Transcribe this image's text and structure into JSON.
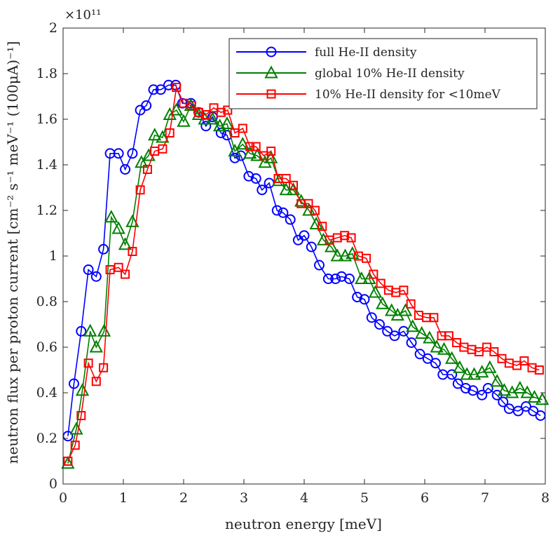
{
  "chart_data": {
    "type": "line",
    "title": "",
    "xlabel": "neutron energy [meV]",
    "ylabel": "neutron flux per proton current  [cm⁻² s⁻¹ meV⁻¹ (100μA)⁻¹]",
    "y_exponent_label": "×10¹¹",
    "xlim": [
      0,
      8
    ],
    "ylim": [
      0,
      2
    ],
    "xticks": [
      0,
      1,
      2,
      3,
      4,
      5,
      6,
      7,
      8
    ],
    "xtick_labels": [
      "0",
      "1",
      "2",
      "3",
      "4",
      "5",
      "6",
      "7",
      "8"
    ],
    "yticks": [
      0,
      0.2,
      0.4,
      0.6,
      0.8,
      1,
      1.2,
      1.4,
      1.6,
      1.8,
      2
    ],
    "ytick_labels": [
      "0",
      "0.2",
      "0.4",
      "0.6",
      "0.8",
      "1",
      "1.2",
      "1.4",
      "1.6",
      "1.8",
      "2"
    ],
    "grid": false,
    "legend_position": "top-right",
    "series": [
      {
        "name": "full He-II density",
        "color": "#0000ff",
        "marker": "circle",
        "x": [
          0.08,
          0.18,
          0.3,
          0.42,
          0.55,
          0.67,
          0.78,
          0.92,
          1.03,
          1.15,
          1.28,
          1.38,
          1.5,
          1.62,
          1.75,
          1.87,
          1.98,
          2.12,
          2.25,
          2.37,
          2.48,
          2.62,
          2.72,
          2.85,
          2.95,
          3.08,
          3.2,
          3.3,
          3.42,
          3.55,
          3.65,
          3.77,
          3.9,
          4.0,
          4.12,
          4.25,
          4.4,
          4.52,
          4.62,
          4.75,
          4.88,
          5.0,
          5.12,
          5.25,
          5.38,
          5.5,
          5.65,
          5.78,
          5.92,
          6.05,
          6.18,
          6.3,
          6.45,
          6.55,
          6.68,
          6.8,
          6.95,
          7.05,
          7.2,
          7.3,
          7.4,
          7.55,
          7.68,
          7.8,
          7.92
        ],
        "y": [
          0.21,
          0.44,
          0.67,
          0.94,
          0.91,
          1.03,
          1.45,
          1.45,
          1.38,
          1.45,
          1.64,
          1.66,
          1.73,
          1.73,
          1.75,
          1.75,
          1.67,
          1.67,
          1.63,
          1.57,
          1.61,
          1.54,
          1.53,
          1.43,
          1.44,
          1.35,
          1.34,
          1.29,
          1.32,
          1.2,
          1.19,
          1.16,
          1.07,
          1.09,
          1.04,
          0.96,
          0.9,
          0.9,
          0.91,
          0.9,
          0.82,
          0.81,
          0.73,
          0.7,
          0.67,
          0.65,
          0.67,
          0.62,
          0.57,
          0.55,
          0.53,
          0.48,
          0.48,
          0.44,
          0.42,
          0.41,
          0.39,
          0.42,
          0.39,
          0.36,
          0.33,
          0.32,
          0.34,
          0.32,
          0.3
        ]
      },
      {
        "name": "global 10% He-II density",
        "color": "#008000",
        "marker": "triangle",
        "x": [
          0.08,
          0.22,
          0.32,
          0.45,
          0.55,
          0.68,
          0.8,
          0.92,
          1.03,
          1.15,
          1.3,
          1.42,
          1.52,
          1.65,
          1.77,
          1.88,
          2.0,
          2.12,
          2.25,
          2.35,
          2.48,
          2.6,
          2.72,
          2.85,
          2.98,
          3.1,
          3.22,
          3.35,
          3.45,
          3.58,
          3.7,
          3.82,
          3.95,
          4.08,
          4.2,
          4.32,
          4.45,
          4.55,
          4.68,
          4.8,
          4.95,
          5.08,
          5.18,
          5.3,
          5.45,
          5.55,
          5.68,
          5.8,
          5.95,
          6.08,
          6.2,
          6.32,
          6.45,
          6.58,
          6.7,
          6.82,
          6.95,
          7.08,
          7.2,
          7.32,
          7.45,
          7.58,
          7.7,
          7.82,
          7.95
        ],
        "y": [
          0.09,
          0.24,
          0.41,
          0.67,
          0.6,
          0.67,
          1.17,
          1.12,
          1.05,
          1.15,
          1.41,
          1.44,
          1.53,
          1.52,
          1.62,
          1.64,
          1.59,
          1.66,
          1.62,
          1.6,
          1.6,
          1.57,
          1.58,
          1.46,
          1.49,
          1.45,
          1.44,
          1.41,
          1.43,
          1.33,
          1.29,
          1.29,
          1.24,
          1.2,
          1.14,
          1.07,
          1.04,
          1.0,
          1.0,
          1.01,
          0.9,
          0.9,
          0.84,
          0.79,
          0.76,
          0.74,
          0.76,
          0.69,
          0.66,
          0.64,
          0.6,
          0.59,
          0.55,
          0.51,
          0.48,
          0.48,
          0.49,
          0.51,
          0.45,
          0.41,
          0.4,
          0.42,
          0.4,
          0.38,
          0.37
        ]
      },
      {
        "name": "10% He-II density for <10meV",
        "color": "#ff0000",
        "marker": "square",
        "x": [
          0.08,
          0.2,
          0.3,
          0.42,
          0.55,
          0.67,
          0.78,
          0.92,
          1.03,
          1.15,
          1.28,
          1.4,
          1.52,
          1.65,
          1.77,
          1.88,
          2.0,
          2.13,
          2.25,
          2.37,
          2.5,
          2.62,
          2.73,
          2.85,
          2.98,
          3.1,
          3.2,
          3.33,
          3.45,
          3.57,
          3.7,
          3.82,
          3.95,
          4.07,
          4.18,
          4.3,
          4.42,
          4.55,
          4.67,
          4.78,
          4.9,
          5.03,
          5.15,
          5.27,
          5.4,
          5.52,
          5.65,
          5.77,
          5.9,
          6.03,
          6.15,
          6.28,
          6.4,
          6.53,
          6.65,
          6.78,
          6.9,
          7.03,
          7.15,
          7.28,
          7.4,
          7.53,
          7.65,
          7.78,
          7.9
        ],
        "y": [
          0.1,
          0.17,
          0.3,
          0.53,
          0.45,
          0.51,
          0.94,
          0.95,
          0.92,
          1.02,
          1.29,
          1.38,
          1.46,
          1.47,
          1.54,
          1.74,
          1.67,
          1.66,
          1.63,
          1.62,
          1.65,
          1.63,
          1.64,
          1.54,
          1.56,
          1.48,
          1.48,
          1.44,
          1.46,
          1.34,
          1.34,
          1.31,
          1.23,
          1.23,
          1.2,
          1.13,
          1.07,
          1.08,
          1.09,
          1.08,
          1.0,
          0.99,
          0.92,
          0.88,
          0.85,
          0.84,
          0.85,
          0.79,
          0.74,
          0.73,
          0.73,
          0.65,
          0.65,
          0.62,
          0.6,
          0.59,
          0.58,
          0.6,
          0.58,
          0.55,
          0.53,
          0.52,
          0.54,
          0.51,
          0.5
        ]
      }
    ]
  }
}
